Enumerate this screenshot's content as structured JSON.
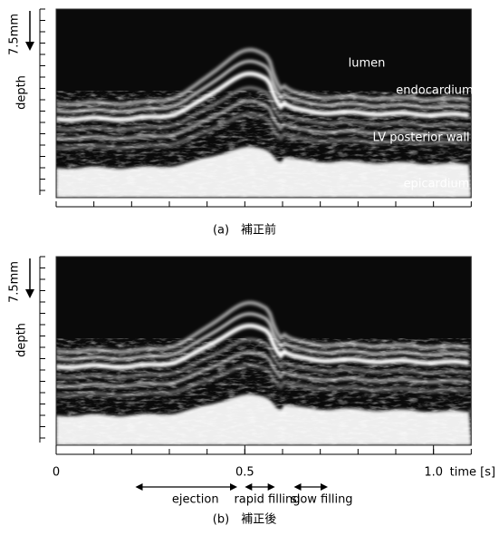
{
  "figure": {
    "depth_label": "depth",
    "depth_scale": "7.5mm",
    "panels": [
      {
        "caption": "(a)　補正前",
        "annotations": [
          "lumen",
          "endocardium",
          "LV posterior wall",
          "epicardium"
        ]
      },
      {
        "caption": "(b)　補正後",
        "annotations": []
      }
    ],
    "time_axis": {
      "xlim": [
        0,
        1.1
      ],
      "ticks": [
        {
          "value": 0,
          "label": "0"
        },
        {
          "value": 0.5,
          "label": "0.5"
        },
        {
          "value": 1.0,
          "label": "1.0"
        }
      ],
      "minor_ticks": [
        0,
        0.1,
        0.2,
        0.3,
        0.4,
        0.5,
        0.6,
        0.7,
        0.8,
        0.9,
        1.0,
        1.1
      ],
      "unit": "time [s]"
    },
    "phases": [
      {
        "name": "ejection",
        "start": 0.21,
        "end": 0.48
      },
      {
        "name": "rapid filling",
        "start": 0.5,
        "end": 0.58
      },
      {
        "name": "slow filling",
        "start": 0.63,
        "end": 0.72
      }
    ]
  }
}
